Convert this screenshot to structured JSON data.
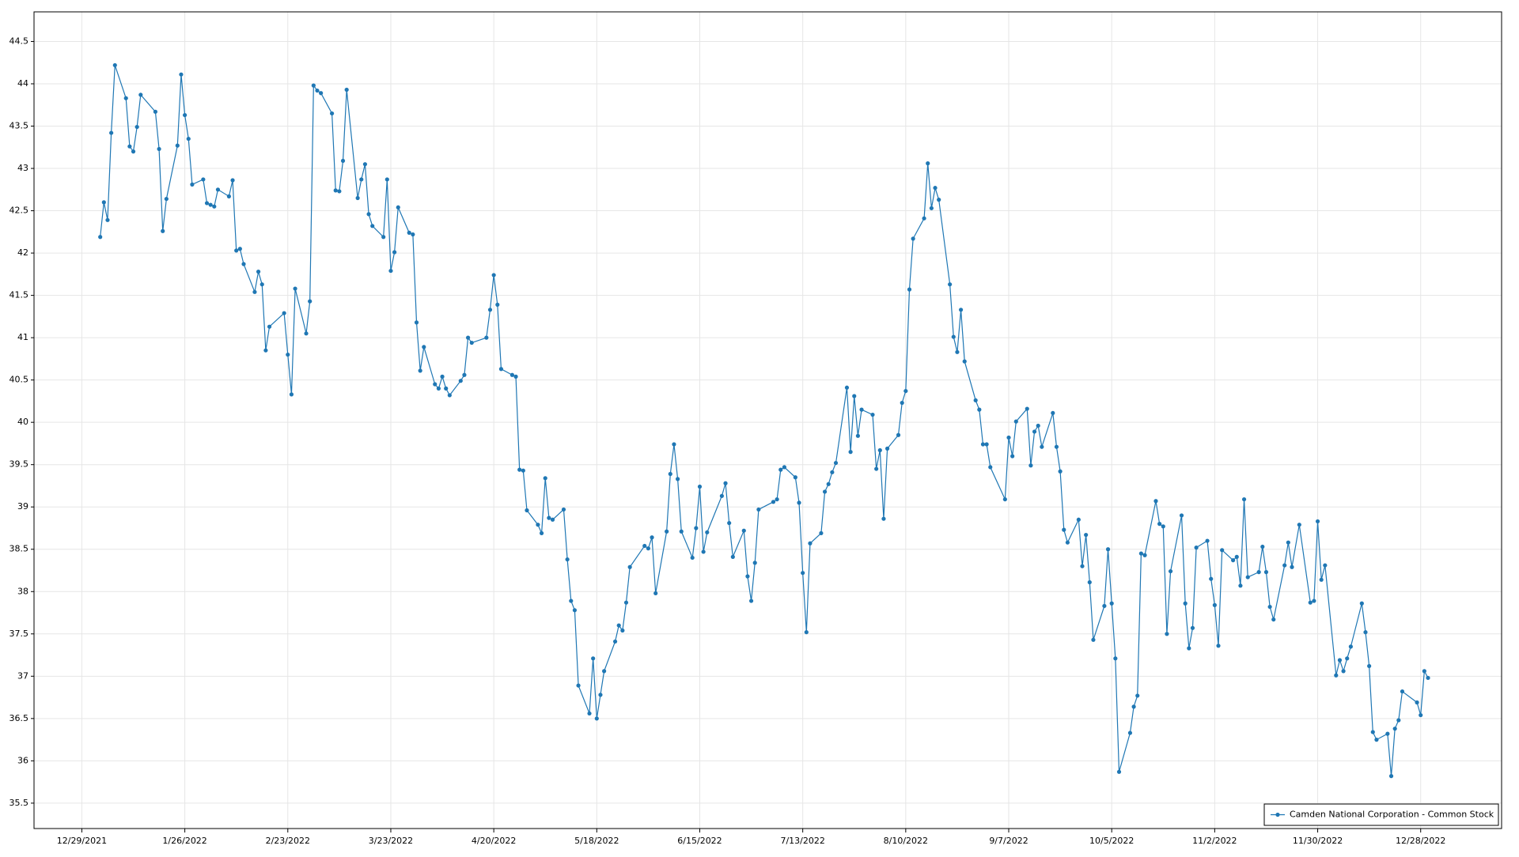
{
  "chart_data": {
    "type": "line",
    "x": [
      "1/3/2022",
      "1/4/2022",
      "1/5/2022",
      "1/6/2022",
      "1/7/2022",
      "1/10/2022",
      "1/11/2022",
      "1/12/2022",
      "1/13/2022",
      "1/14/2022",
      "1/18/2022",
      "1/19/2022",
      "1/20/2022",
      "1/21/2022",
      "1/24/2022",
      "1/25/2022",
      "1/26/2022",
      "1/27/2022",
      "1/28/2022",
      "1/31/2022",
      "2/1/2022",
      "2/2/2022",
      "2/3/2022",
      "2/4/2022",
      "2/7/2022",
      "2/8/2022",
      "2/9/2022",
      "2/10/2022",
      "2/11/2022",
      "2/14/2022",
      "2/15/2022",
      "2/16/2022",
      "2/17/2022",
      "2/18/2022",
      "2/22/2022",
      "2/23/2022",
      "2/24/2022",
      "2/25/2022",
      "2/28/2022",
      "3/1/2022",
      "3/2/2022",
      "3/3/2022",
      "3/4/2022",
      "3/7/2022",
      "3/8/2022",
      "3/9/2022",
      "3/10/2022",
      "3/11/2022",
      "3/14/2022",
      "3/15/2022",
      "3/16/2022",
      "3/17/2022",
      "3/18/2022",
      "3/21/2022",
      "3/22/2022",
      "3/23/2022",
      "3/24/2022",
      "3/25/2022",
      "3/28/2022",
      "3/29/2022",
      "3/30/2022",
      "3/31/2022",
      "4/1/2022",
      "4/4/2022",
      "4/5/2022",
      "4/6/2022",
      "4/7/2022",
      "4/8/2022",
      "4/11/2022",
      "4/12/2022",
      "4/13/2022",
      "4/14/2022",
      "4/18/2022",
      "4/19/2022",
      "4/20/2022",
      "4/21/2022",
      "4/22/2022",
      "4/25/2022",
      "4/26/2022",
      "4/27/2022",
      "4/28/2022",
      "4/29/2022",
      "5/2/2022",
      "5/3/2022",
      "5/4/2022",
      "5/5/2022",
      "5/6/2022",
      "5/9/2022",
      "5/10/2022",
      "5/11/2022",
      "5/12/2022",
      "5/13/2022",
      "5/16/2022",
      "5/17/2022",
      "5/18/2022",
      "5/19/2022",
      "5/20/2022",
      "5/23/2022",
      "5/24/2022",
      "5/25/2022",
      "5/26/2022",
      "5/27/2022",
      "5/31/2022",
      "6/1/2022",
      "6/2/2022",
      "6/3/2022",
      "6/6/2022",
      "6/7/2022",
      "6/8/2022",
      "6/9/2022",
      "6/10/2022",
      "6/13/2022",
      "6/14/2022",
      "6/15/2022",
      "6/16/2022",
      "6/17/2022",
      "6/21/2022",
      "6/22/2022",
      "6/23/2022",
      "6/24/2022",
      "6/27/2022",
      "6/28/2022",
      "6/29/2022",
      "6/30/2022",
      "7/1/2022",
      "7/5/2022",
      "7/6/2022",
      "7/7/2022",
      "7/8/2022",
      "7/11/2022",
      "7/12/2022",
      "7/13/2022",
      "7/14/2022",
      "7/15/2022",
      "7/18/2022",
      "7/19/2022",
      "7/20/2022",
      "7/21/2022",
      "7/22/2022",
      "7/25/2022",
      "7/26/2022",
      "7/27/2022",
      "7/28/2022",
      "7/29/2022",
      "8/1/2022",
      "8/2/2022",
      "8/3/2022",
      "8/4/2022",
      "8/5/2022",
      "8/8/2022",
      "8/9/2022",
      "8/10/2022",
      "8/11/2022",
      "8/12/2022",
      "8/15/2022",
      "8/16/2022",
      "8/17/2022",
      "8/18/2022",
      "8/19/2022",
      "8/22/2022",
      "8/23/2022",
      "8/24/2022",
      "8/25/2022",
      "8/26/2022",
      "8/29/2022",
      "8/30/2022",
      "8/31/2022",
      "9/1/2022",
      "9/2/2022",
      "9/6/2022",
      "9/7/2022",
      "9/8/2022",
      "9/9/2022",
      "9/12/2022",
      "9/13/2022",
      "9/14/2022",
      "9/15/2022",
      "9/16/2022",
      "9/19/2022",
      "9/20/2022",
      "9/21/2022",
      "9/22/2022",
      "9/23/2022",
      "9/26/2022",
      "9/27/2022",
      "9/28/2022",
      "9/29/2022",
      "9/30/2022",
      "10/3/2022",
      "10/4/2022",
      "10/5/2022",
      "10/6/2022",
      "10/7/2022",
      "10/10/2022",
      "10/11/2022",
      "10/12/2022",
      "10/13/2022",
      "10/14/2022",
      "10/17/2022",
      "10/18/2022",
      "10/19/2022",
      "10/20/2022",
      "10/21/2022",
      "10/24/2022",
      "10/25/2022",
      "10/26/2022",
      "10/27/2022",
      "10/28/2022",
      "10/31/2022",
      "11/1/2022",
      "11/2/2022",
      "11/3/2022",
      "11/4/2022",
      "11/7/2022",
      "11/8/2022",
      "11/9/2022",
      "11/10/2022",
      "11/11/2022",
      "11/14/2022",
      "11/15/2022",
      "11/16/2022",
      "11/17/2022",
      "11/18/2022",
      "11/21/2022",
      "11/22/2022",
      "11/23/2022",
      "11/25/2022",
      "11/28/2022",
      "11/29/2022",
      "11/30/2022",
      "12/1/2022",
      "12/2/2022",
      "12/5/2022",
      "12/6/2022",
      "12/7/2022",
      "12/8/2022",
      "12/9/2022",
      "12/12/2022",
      "12/13/2022",
      "12/14/2022",
      "12/15/2022",
      "12/16/2022",
      "12/19/2022",
      "12/20/2022",
      "12/21/2022",
      "12/22/2022",
      "12/23/2022",
      "12/27/2022",
      "12/28/2022",
      "12/29/2022",
      "12/30/2022"
    ],
    "series": [
      {
        "name": "Camden National Corporation - Common Stock",
        "color": "#1f77b4",
        "values": [
          42.19,
          42.6,
          42.39,
          43.42,
          44.22,
          43.83,
          43.26,
          43.2,
          43.49,
          43.87,
          43.67,
          43.23,
          42.26,
          42.64,
          43.27,
          44.11,
          43.63,
          43.35,
          42.81,
          42.87,
          42.59,
          42.57,
          42.55,
          42.75,
          42.67,
          42.86,
          42.03,
          42.05,
          41.87,
          41.54,
          41.78,
          41.63,
          40.85,
          41.13,
          41.29,
          40.8,
          40.33,
          41.58,
          41.05,
          41.43,
          43.98,
          43.92,
          43.89,
          43.65,
          42.74,
          42.73,
          43.09,
          43.93,
          42.65,
          42.87,
          43.05,
          42.46,
          42.32,
          42.19,
          42.87,
          41.79,
          42.01,
          42.54,
          42.24,
          42.22,
          41.18,
          40.61,
          40.89,
          40.45,
          40.4,
          40.54,
          40.4,
          40.32,
          40.49,
          40.56,
          41.0,
          40.94,
          41.0,
          41.33,
          41.74,
          41.39,
          40.63,
          40.56,
          40.54,
          39.44,
          39.43,
          38.96,
          38.79,
          38.69,
          39.34,
          38.87,
          38.85,
          38.97,
          38.38,
          37.89,
          37.78,
          36.89,
          36.56,
          37.21,
          36.5,
          36.78,
          37.06,
          37.41,
          37.6,
          37.54,
          37.87,
          38.29,
          38.54,
          38.51,
          38.64,
          37.98,
          38.71,
          39.39,
          39.74,
          39.33,
          38.71,
          38.4,
          38.75,
          39.24,
          38.47,
          38.7,
          39.13,
          39.28,
          38.81,
          38.41,
          38.72,
          38.18,
          37.89,
          38.34,
          38.97,
          39.06,
          39.09,
          39.44,
          39.47,
          39.35,
          39.05,
          38.22,
          37.52,
          38.57,
          38.69,
          39.18,
          39.27,
          39.41,
          39.52,
          40.41,
          39.65,
          40.31,
          39.84,
          40.15,
          40.09,
          39.45,
          39.67,
          38.86,
          39.69,
          39.85,
          40.23,
          40.37,
          41.57,
          42.17,
          42.41,
          43.06,
          42.53,
          42.77,
          42.63,
          41.63,
          41.01,
          40.83,
          41.33,
          40.72,
          40.26,
          40.15,
          39.74,
          39.74,
          39.47,
          39.09,
          39.82,
          39.6,
          40.01,
          40.16,
          39.49,
          39.89,
          39.96,
          39.71,
          40.11,
          39.71,
          39.42,
          38.73,
          38.58,
          38.85,
          38.3,
          38.67,
          38.11,
          37.43,
          37.83,
          38.5,
          37.86,
          37.21,
          35.87,
          36.33,
          36.64,
          36.77,
          38.45,
          38.43,
          39.07,
          38.8,
          38.77,
          37.5,
          38.24,
          38.9,
          37.86,
          37.33,
          37.57,
          38.52,
          38.6,
          38.15,
          37.84,
          37.36,
          38.49,
          38.37,
          38.41,
          38.07,
          39.09,
          38.17,
          38.23,
          38.53,
          38.23,
          37.82,
          37.67,
          38.31,
          38.58,
          38.29,
          38.79,
          37.87,
          37.89,
          38.83,
          38.14,
          38.31,
          37.01,
          37.19,
          37.06,
          37.21,
          37.35,
          37.86,
          37.52,
          37.12,
          36.34,
          36.25,
          36.32,
          35.82,
          36.38,
          36.48,
          36.82,
          36.69,
          36.54,
          37.06,
          36.98
        ]
      }
    ],
    "xlim": [
      "12/16/2021",
      "1/19/2023"
    ],
    "xticks": [
      "12/29/2021",
      "1/26/2022",
      "2/23/2022",
      "3/23/2022",
      "4/20/2022",
      "5/18/2022",
      "6/15/2022",
      "7/13/2022",
      "8/10/2022",
      "9/7/2022",
      "10/5/2022",
      "11/2/2022",
      "11/30/2022",
      "12/28/2022"
    ],
    "ylim": [
      35.2,
      44.85
    ],
    "yticks": [
      35.5,
      36,
      36.5,
      37,
      37.5,
      38,
      38.5,
      39,
      39.5,
      40,
      40.5,
      41,
      41.5,
      42,
      42.5,
      43,
      43.5,
      44,
      44.5
    ],
    "grid": true,
    "legend": "lower right"
  }
}
